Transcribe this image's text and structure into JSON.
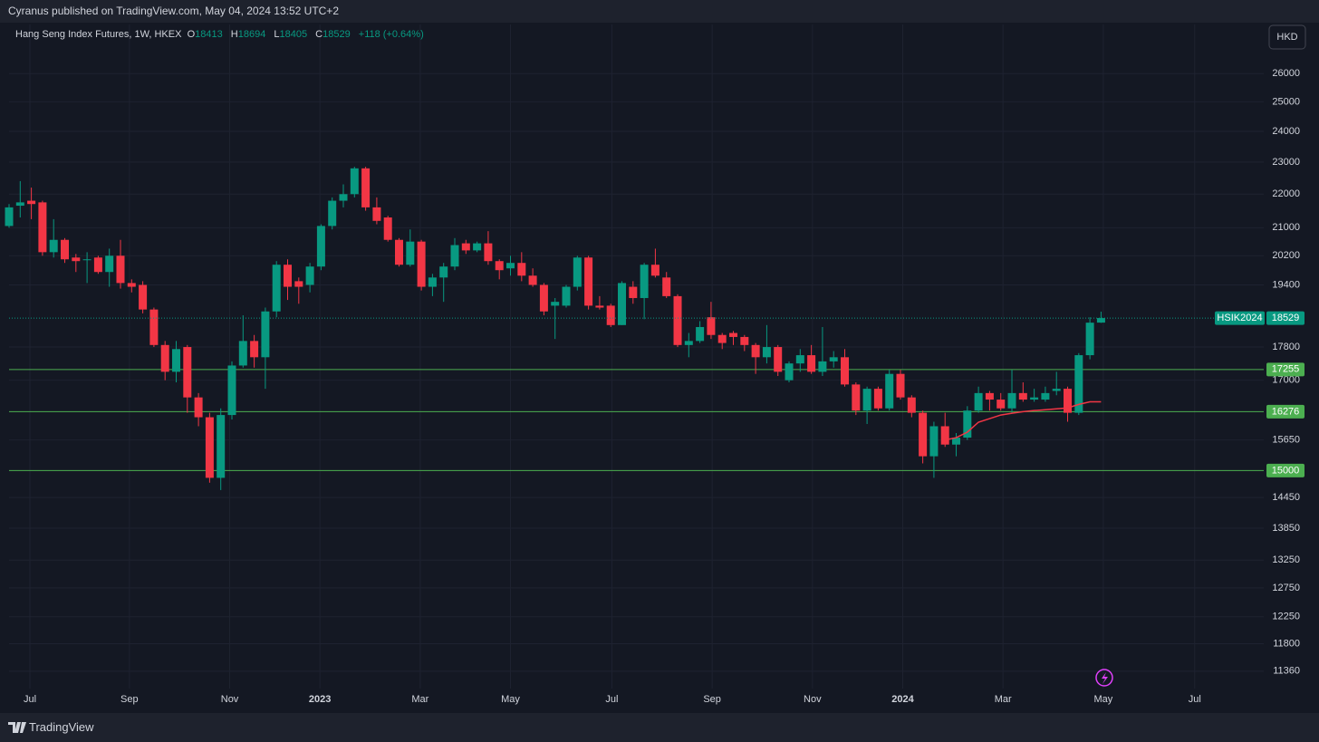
{
  "header": "Cyranus published on TradingView.com, May 04, 2024 13:52 UTC+2",
  "footer": "TradingView",
  "chart_data": {
    "type": "candlestick",
    "legend": {
      "symbol": "Hang Seng Index Futures, 1W, HKEX",
      "labels": [
        "O",
        "H",
        "L",
        "C"
      ],
      "change": "+118 (+0.64%)"
    },
    "currency": "HKD",
    "price_label": "HSIK2024",
    "up_color": "#089981",
    "down_color": "#f23645",
    "log_scale": true,
    "grid": true,
    "categories": [
      null,
      null,
      null,
      null,
      null,
      null,
      null,
      null,
      null,
      null,
      null,
      null,
      null,
      null,
      null,
      null,
      null,
      null,
      null,
      null,
      null,
      null,
      null,
      null,
      null,
      null,
      null,
      null,
      null,
      null,
      null,
      null,
      null,
      null,
      null,
      null,
      null,
      null,
      null,
      null,
      null,
      null,
      null,
      null,
      null,
      null,
      null,
      null,
      null,
      null,
      null,
      null,
      null,
      null,
      null,
      null,
      null,
      null,
      null,
      null,
      null,
      null,
      null,
      null,
      null,
      null,
      null,
      null,
      null,
      null,
      null,
      null,
      null,
      null,
      null,
      null,
      null,
      null,
      null,
      null,
      null,
      null,
      null,
      null,
      null,
      null,
      null,
      null,
      null,
      null,
      null,
      null,
      null,
      null,
      null,
      null,
      null,
      null,
      null
    ],
    "open": [
      21050,
      21650,
      21800,
      21750,
      20300,
      20650,
      20150,
      20080,
      20150,
      19750,
      20200,
      19450,
      19400,
      18750,
      17850,
      17200,
      17800,
      16600,
      16150,
      14850,
      16200,
      17350,
      17950,
      17550,
      18700,
      19950,
      19500,
      19400,
      19900,
      21050,
      21800,
      22000,
      22800,
      21600,
      21300,
      20650,
      19950,
      20600,
      19350,
      19600,
      19900,
      20550,
      20350,
      20550,
      20050,
      19850,
      20000,
      19650,
      19400,
      18850,
      18850,
      19350,
      20150,
      18850,
      18850,
      18350,
      19350,
      19050,
      19950,
      19600,
      19100,
      17850,
      17950,
      18550,
      18100,
      18150,
      18050,
      17850,
      17550,
      17800,
      17000,
      17400,
      17600,
      17200,
      17450,
      17550,
      16900,
      16300,
      16800,
      16350,
      17150,
      16600,
      16250,
      15300,
      15950,
      15550,
      15700,
      16300,
      16700,
      16550,
      16350,
      16700,
      16550,
      16550,
      16750,
      16800,
      16250,
      17600,
      18413
    ],
    "high": [
      21700,
      22400,
      22200,
      21800,
      21250,
      20700,
      20250,
      20300,
      20200,
      20400,
      20650,
      19550,
      19500,
      18800,
      17950,
      17950,
      17850,
      16700,
      16250,
      16350,
      17450,
      18600,
      18100,
      18800,
      20050,
      20100,
      19600,
      20000,
      21100,
      21900,
      22300,
      22850,
      22850,
      21900,
      21350,
      20700,
      20950,
      20650,
      19700,
      20000,
      20700,
      20650,
      20600,
      20900,
      20100,
      20200,
      20300,
      19850,
      19450,
      19050,
      19400,
      20200,
      20200,
      19100,
      18900,
      19500,
      19500,
      20000,
      20400,
      19750,
      19150,
      18150,
      18450,
      18950,
      18150,
      18200,
      18100,
      17900,
      18350,
      17850,
      17450,
      17750,
      17850,
      18300,
      17700,
      17750,
      16950,
      16850,
      16850,
      17250,
      17250,
      16650,
      16300,
      16050,
      16250,
      15800,
      16400,
      16850,
      16750,
      16700,
      17250,
      16950,
      16800,
      16850,
      17200,
      16850,
      17650,
      18550,
      18694
    ],
    "low": [
      21000,
      21300,
      21250,
      20200,
      20150,
      20000,
      19750,
      19450,
      19700,
      19350,
      19300,
      19200,
      18650,
      17800,
      17000,
      16950,
      16250,
      15950,
      14750,
      14600,
      16100,
      17300,
      17300,
      16800,
      18550,
      19000,
      18900,
      19200,
      19800,
      20950,
      21600,
      21900,
      21500,
      21100,
      20600,
      19900,
      19900,
      19250,
      19100,
      18950,
      19800,
      20250,
      20300,
      19950,
      19550,
      19650,
      19500,
      19350,
      18600,
      18000,
      18800,
      19250,
      18750,
      18750,
      18300,
      18350,
      18900,
      18500,
      19600,
      19050,
      17800,
      17550,
      17900,
      18000,
      17750,
      17850,
      17700,
      17150,
      17400,
      17100,
      16950,
      17200,
      17150,
      17100,
      17300,
      16850,
      16200,
      16000,
      16300,
      16300,
      16550,
      16150,
      15150,
      14850,
      15500,
      15300,
      15650,
      16250,
      16300,
      16300,
      16250,
      16500,
      16500,
      16500,
      16650,
      16050,
      16200,
      17500,
      18405
    ],
    "close": [
      21600,
      21750,
      21700,
      20300,
      20650,
      20100,
      20050,
      20100,
      19750,
      20200,
      19450,
      19350,
      18750,
      17850,
      17200,
      17750,
      16600,
      16150,
      14850,
      16200,
      17350,
      17950,
      17550,
      18700,
      19950,
      19350,
      19350,
      19900,
      21050,
      21800,
      22000,
      22800,
      21600,
      21200,
      20650,
      19950,
      20600,
      19350,
      19600,
      19900,
      20500,
      20350,
      20550,
      20050,
      19800,
      20000,
      19650,
      19400,
      18700,
      18950,
      19350,
      20150,
      18850,
      18800,
      18350,
      19450,
      19050,
      19950,
      19650,
      19100,
      17850,
      17950,
      18300,
      18100,
      17900,
      18050,
      17850,
      17550,
      17800,
      17200,
      17400,
      17600,
      17200,
      17450,
      17550,
      16900,
      16300,
      16800,
      16350,
      17150,
      16600,
      16250,
      15300,
      15950,
      15550,
      15700,
      16300,
      16700,
      16550,
      16350,
      16700,
      16550,
      16600,
      16700,
      16800,
      16250,
      17600,
      18411,
      18529
    ],
    "ma": {
      "color": "#f23645",
      "values": [
        null,
        null,
        null,
        null,
        null,
        null,
        null,
        null,
        null,
        null,
        null,
        null,
        null,
        null,
        null,
        null,
        null,
        null,
        null,
        null,
        null,
        null,
        null,
        null,
        null,
        null,
        null,
        null,
        null,
        null,
        null,
        null,
        null,
        null,
        null,
        null,
        null,
        null,
        null,
        null,
        null,
        null,
        null,
        null,
        null,
        null,
        null,
        null,
        null,
        null,
        null,
        null,
        null,
        null,
        null,
        null,
        null,
        null,
        null,
        null,
        null,
        null,
        null,
        null,
        null,
        null,
        null,
        null,
        null,
        null,
        null,
        null,
        null,
        null,
        null,
        null,
        null,
        null,
        null,
        null,
        null,
        null,
        null,
        null,
        15650,
        15700,
        15820,
        16040,
        16120,
        16200,
        16240,
        16276,
        16300,
        16320,
        16340,
        16360,
        16440,
        16500,
        16500
      ]
    },
    "levels": [
      17255,
      16276,
      15000
    ],
    "level_color": "#4caf50",
    "xlim": [
      0,
      112.6
    ],
    "xticks": [
      {
        "value": 1.87,
        "label": "Jul"
      },
      {
        "value": 10.8,
        "label": "Sep"
      },
      {
        "value": 19.8,
        "label": "Nov"
      },
      {
        "value": 27.9,
        "label": "2023"
      },
      {
        "value": 36.9,
        "label": "Mar"
      },
      {
        "value": 45,
        "label": "May"
      },
      {
        "value": 54.1,
        "label": "Jul"
      },
      {
        "value": 63.1,
        "label": "Sep"
      },
      {
        "value": 72.1,
        "label": "Nov"
      },
      {
        "value": 80.2,
        "label": "2024"
      },
      {
        "value": 89.2,
        "label": "Mar"
      },
      {
        "value": 98.2,
        "label": "May"
      },
      {
        "value": 106.4,
        "label": "Jul"
      }
    ],
    "ylim": [
      11090,
      27830
    ],
    "yticks": [
      26000,
      25000,
      24000,
      23000,
      22000,
      21000,
      20200,
      19400,
      17800,
      17000,
      15650,
      14450,
      13850,
      13250,
      12750,
      12250,
      11800,
      11360
    ]
  }
}
